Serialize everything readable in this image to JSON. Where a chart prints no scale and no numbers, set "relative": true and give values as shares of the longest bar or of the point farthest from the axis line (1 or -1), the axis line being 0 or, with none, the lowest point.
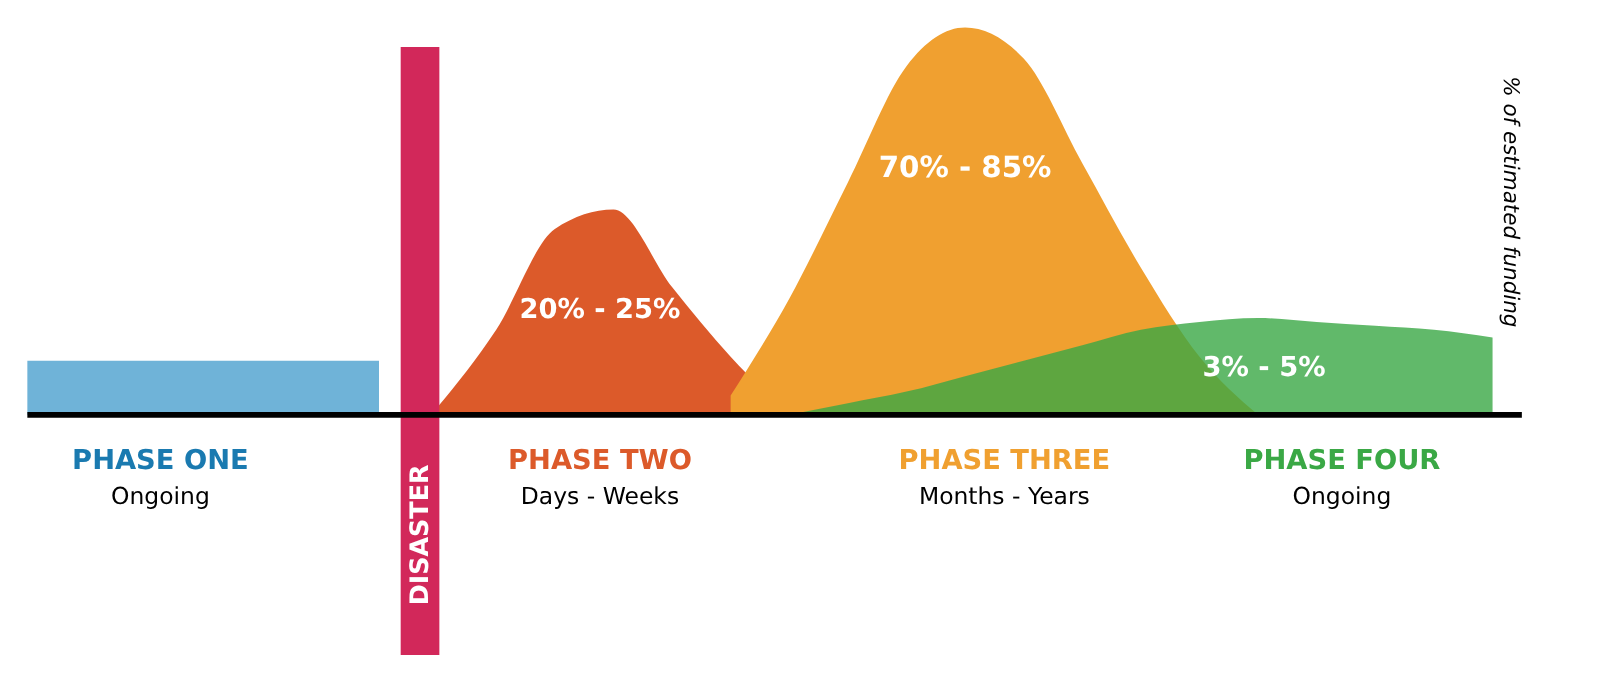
{
  "chart_data": {
    "type": "area",
    "relative": true,
    "categories": [
      null,
      null,
      null,
      null,
      null,
      null,
      null,
      null,
      null,
      null,
      null,
      null,
      null,
      null,
      null,
      null,
      null,
      null,
      null,
      null,
      null,
      null,
      null,
      null,
      null,
      null
    ],
    "series": [
      {
        "name": "PHASE ONE",
        "color": "#6fb3d8",
        "values": [
          0.14,
          0.14,
          0.14,
          0.14,
          0.14,
          0.14,
          0.14,
          null,
          null,
          null,
          null,
          null,
          null,
          null,
          null,
          null,
          null,
          null,
          null,
          null,
          null,
          null,
          null,
          null,
          null,
          null
        ]
      },
      {
        "name": "PHASE TWO",
        "color": "#dc5a2a",
        "values": [
          null,
          null,
          null,
          null,
          null,
          null,
          null,
          0.02,
          0.22,
          0.48,
          0.53,
          0.33,
          0.15,
          0.0,
          null,
          null,
          null,
          null,
          null,
          null,
          null,
          null,
          null,
          null,
          null,
          null
        ]
      },
      {
        "name": "PHASE THREE",
        "color": "#f0a030",
        "values": [
          null,
          null,
          null,
          null,
          null,
          null,
          null,
          null,
          null,
          null,
          null,
          null,
          0.05,
          0.3,
          0.6,
          0.9,
          1.0,
          0.92,
          0.65,
          0.38,
          0.15,
          0.0,
          null,
          null,
          null,
          null
        ]
      },
      {
        "name": "PHASE FOUR",
        "color": "#3aa845",
        "values": [
          null,
          null,
          null,
          null,
          null,
          null,
          null,
          null,
          null,
          null,
          null,
          null,
          null,
          0.0,
          0.03,
          0.06,
          0.1,
          0.14,
          0.18,
          0.22,
          0.24,
          0.25,
          0.24,
          0.23,
          0.22,
          0.2
        ]
      }
    ],
    "ylabel": "% of estimated funding",
    "annotations": [
      "20% - 25%",
      "70% - 85%",
      "3% - 5%",
      "Ongoing",
      "Days - Weeks",
      "Months - Years",
      "Ongoing",
      "DISASTER"
    ]
  }
}
